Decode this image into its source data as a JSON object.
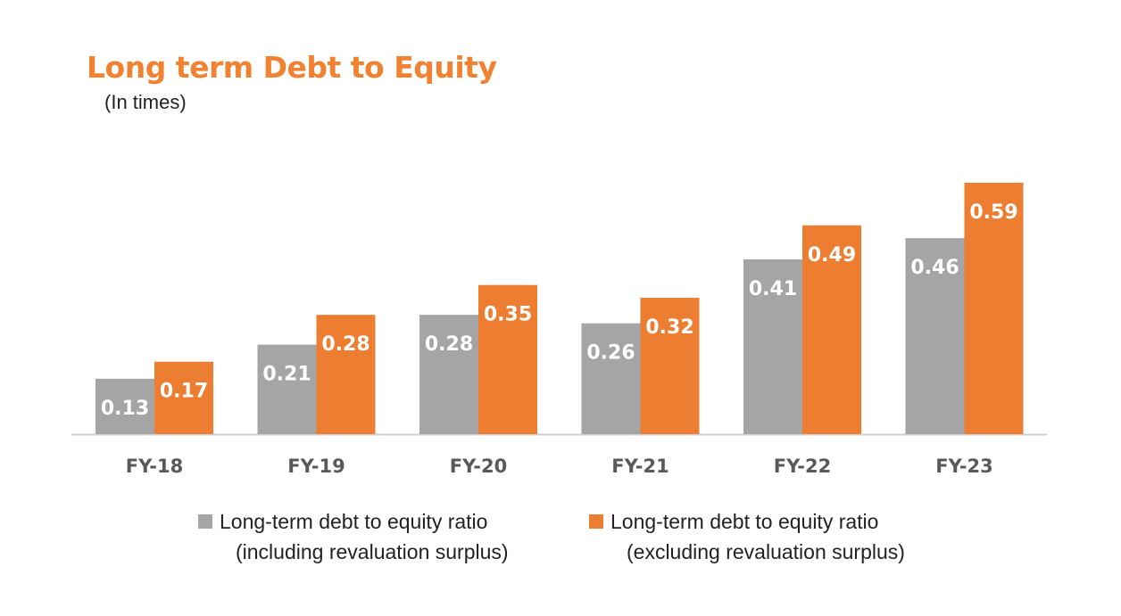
{
  "title": "Long term Debt to Equity",
  "subtitle": "(In times)",
  "colors": {
    "accent": "#f08232",
    "series1": "#a5a5a7",
    "series2": "#ed7d31",
    "axis": "#d0d0d0"
  },
  "legend": [
    {
      "line1": "Long-term debt to equity ratio",
      "line2": "(including revaluation surplus)"
    },
    {
      "line1": "Long-term debt to equity ratio",
      "line2": "(excluding revaluation surplus)"
    }
  ],
  "chart_data": {
    "type": "bar",
    "categories": [
      "FY-18",
      "FY-19",
      "FY-20",
      "FY-21",
      "FY-22",
      "FY-23"
    ],
    "series": [
      {
        "name": "Long-term debt to equity ratio (including revaluation surplus)",
        "values": [
          0.13,
          0.21,
          0.28,
          0.26,
          0.41,
          0.46
        ]
      },
      {
        "name": "Long-term debt to equity ratio (excluding revaluation surplus)",
        "values": [
          0.17,
          0.28,
          0.35,
          0.32,
          0.49,
          0.59
        ]
      }
    ],
    "ylim": [
      0,
      0.6
    ],
    "grid": false,
    "legend_position": "bottom"
  }
}
